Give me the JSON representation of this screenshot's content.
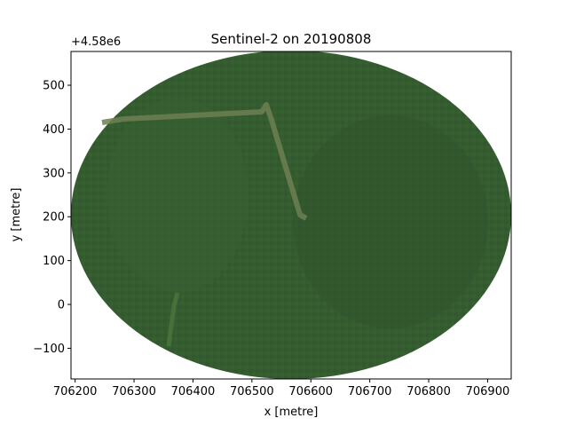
{
  "chart_data": {
    "type": "image",
    "title": "Sentinel-2 on 20190808",
    "xlabel": "x [metre]",
    "ylabel": "y [metre]",
    "xlim": [
      706193,
      706940
    ],
    "ylim": [
      4579830,
      4580577
    ],
    "x_ticks": [
      706200,
      706300,
      706400,
      706500,
      706600,
      706700,
      706800,
      706900
    ],
    "x_tick_labels": [
      "706200",
      "706300",
      "706400",
      "706500",
      "706600",
      "706700",
      "706800",
      "706900"
    ],
    "y_ticks": [
      -100,
      0,
      100,
      200,
      300,
      400,
      500
    ],
    "y_tick_labels": [
      "−100",
      "0",
      "100",
      "200",
      "300",
      "400",
      "500"
    ],
    "y_offset_label": "+4.58e6",
    "image_description_colors": {
      "vegetation": "#335a30",
      "vegetation_dark": "#2c4f2a",
      "road": "#6f8055",
      "road_dark": "#5f7347"
    },
    "masked_region_shape": "ellipse"
  }
}
